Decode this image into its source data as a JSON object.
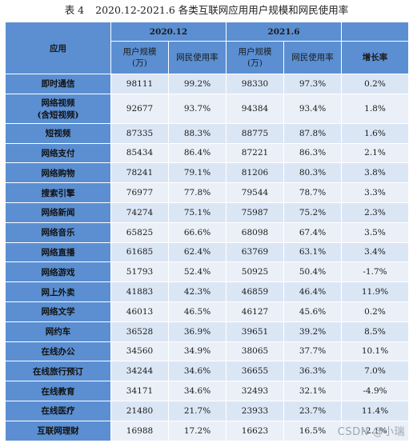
{
  "caption": {
    "label": "表 4",
    "text": "2020.12-2021.6 各类互联网应用用户规模和网民使用率"
  },
  "table": {
    "app_header": "应用",
    "period1": "2020.12",
    "period2": "2021.6",
    "col_users": [
      "用户规模",
      "(万)"
    ],
    "col_rate": "网民使用率",
    "col_growth": "增长率",
    "rows": [
      {
        "app": [
          "即时通信"
        ],
        "u1": "98111",
        "r1": "99.2%",
        "u2": "98330",
        "r2": "97.3%",
        "g": "0.2%"
      },
      {
        "app": [
          "网络视频",
          "(含短视频)"
        ],
        "u1": "92677",
        "r1": "93.7%",
        "u2": "94384",
        "r2": "93.4%",
        "g": "1.8%"
      },
      {
        "app": [
          "短视频"
        ],
        "u1": "87335",
        "r1": "88.3%",
        "u2": "88775",
        "r2": "87.8%",
        "g": "1.6%"
      },
      {
        "app": [
          "网络支付"
        ],
        "u1": "85434",
        "r1": "86.4%",
        "u2": "87221",
        "r2": "86.3%",
        "g": "2.1%"
      },
      {
        "app": [
          "网络购物"
        ],
        "u1": "78241",
        "r1": "79.1%",
        "u2": "81206",
        "r2": "80.3%",
        "g": "3.8%"
      },
      {
        "app": [
          "搜索引擎"
        ],
        "u1": "76977",
        "r1": "77.8%",
        "u2": "79544",
        "r2": "78.7%",
        "g": "3.3%"
      },
      {
        "app": [
          "网络新闻"
        ],
        "u1": "74274",
        "r1": "75.1%",
        "u2": "75987",
        "r2": "75.2%",
        "g": "2.3%"
      },
      {
        "app": [
          "网络音乐"
        ],
        "u1": "65825",
        "r1": "66.6%",
        "u2": "68098",
        "r2": "67.4%",
        "g": "3.5%"
      },
      {
        "app": [
          "网络直播"
        ],
        "u1": "61685",
        "r1": "62.4%",
        "u2": "63769",
        "r2": "63.1%",
        "g": "3.4%"
      },
      {
        "app": [
          "网络游戏"
        ],
        "u1": "51793",
        "r1": "52.4%",
        "u2": "50925",
        "r2": "50.4%",
        "g": "-1.7%"
      },
      {
        "app": [
          "网上外卖"
        ],
        "u1": "41883",
        "r1": "42.3%",
        "u2": "46859",
        "r2": "46.4%",
        "g": "11.9%"
      },
      {
        "app": [
          "网络文学"
        ],
        "u1": "46013",
        "r1": "46.5%",
        "u2": "46127",
        "r2": "45.6%",
        "g": "0.2%"
      },
      {
        "app": [
          "网约车"
        ],
        "u1": "36528",
        "r1": "36.9%",
        "u2": "39651",
        "r2": "39.2%",
        "g": "8.5%"
      },
      {
        "app": [
          "在线办公"
        ],
        "u1": "34560",
        "r1": "34.9%",
        "u2": "38065",
        "r2": "37.7%",
        "g": "10.1%"
      },
      {
        "app": [
          "在线旅行预订"
        ],
        "u1": "34244",
        "r1": "34.6%",
        "u2": "36655",
        "r2": "36.3%",
        "g": "7.0%"
      },
      {
        "app": [
          "在线教育"
        ],
        "u1": "34171",
        "r1": "34.6%",
        "u2": "32493",
        "r2": "32.1%",
        "g": "-4.9%"
      },
      {
        "app": [
          "在线医疗"
        ],
        "u1": "21480",
        "r1": "21.7%",
        "u2": "23933",
        "r2": "23.7%",
        "g": "11.4%"
      },
      {
        "app": [
          "互联网理财"
        ],
        "u1": "16988",
        "r1": "17.2%",
        "u2": "16623",
        "r2": "16.5%",
        "g": "-2.1%"
      }
    ]
  },
  "watermark": "CSDN @小瑞",
  "colors": {
    "header_bg": "#5b8fd2",
    "row_odd": "#dbe6f5",
    "row_even": "#ebf0f8"
  }
}
